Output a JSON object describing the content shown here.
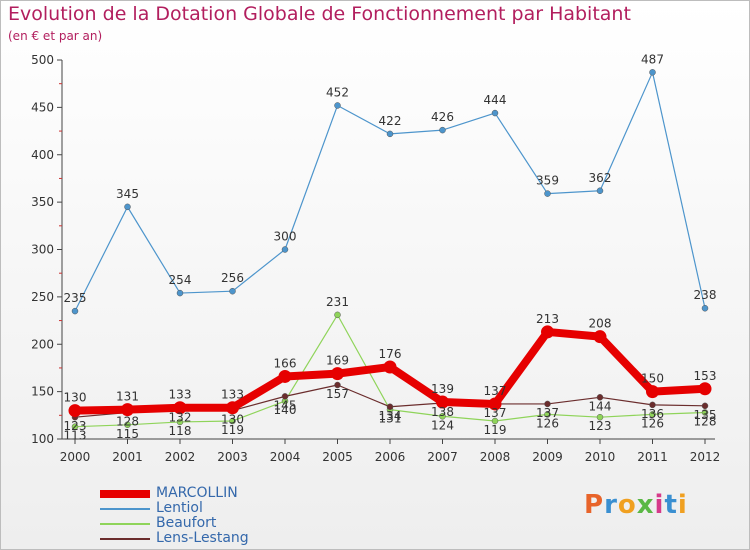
{
  "chart_data": {
    "type": "line",
    "title": "Evolution de la Dotation Globale de Fonctionnement par Habitant",
    "subtitle": "(en € et par an)",
    "xlabel": "",
    "ylabel": "",
    "ylim": [
      100,
      500
    ],
    "yticks": [
      100,
      150,
      200,
      250,
      300,
      350,
      400,
      450,
      500
    ],
    "grid": false,
    "legend_position": "bottom-left",
    "categories": [
      "2000",
      "2001",
      "2002",
      "2003",
      "2004",
      "2005",
      "2006",
      "2007",
      "2008",
      "2009",
      "2010",
      "2011",
      "2012"
    ],
    "series": [
      {
        "name": "MARCOLLIN",
        "color": "#e60000",
        "values": [
          130,
          131,
          133,
          133,
          166,
          169,
          176,
          139,
          137,
          213,
          208,
          150,
          153
        ]
      },
      {
        "name": "Lentiol",
        "color": "#4d95cc",
        "values": [
          235,
          345,
          254,
          256,
          300,
          452,
          422,
          426,
          444,
          359,
          362,
          487,
          238
        ]
      },
      {
        "name": "Beaufort",
        "color": "#8fd45a",
        "values": [
          113,
          115,
          118,
          119,
          140,
          231,
          131,
          124,
          119,
          126,
          123,
          126,
          128
        ]
      },
      {
        "name": "Lens-Lestang",
        "color": "#6b2d2d",
        "values": [
          123,
          128,
          132,
          130,
          145,
          157,
          134,
          138,
          137,
          137,
          144,
          136,
          135
        ]
      }
    ]
  },
  "logo": {
    "text": "Proxiti",
    "colors": [
      "#e8642a",
      "#3a8fd1",
      "#f0a020",
      "#5ab845",
      "#d63a8a",
      "#3a8fd1",
      "#f0a020"
    ]
  }
}
